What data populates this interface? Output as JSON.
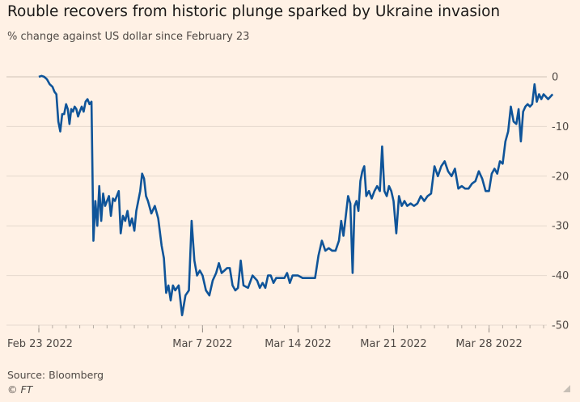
{
  "header": {
    "title": "Rouble recovers from historic plunge sparked by Ukraine invasion",
    "subtitle": "% change against US dollar since February 23"
  },
  "footer": {
    "source": "Source: Bloomberg",
    "credit": "© FT"
  },
  "colors": {
    "background": "#fff1e5",
    "line": "#0f5499",
    "grid": "#e6d9ce",
    "axis_text": "#4f4945"
  },
  "chart_data": {
    "type": "line",
    "title": "Rouble recovers from historic plunge sparked by Ukraine invasion",
    "ylabel": "% change against US dollar since February 23",
    "xlabel": "",
    "y_axis_position": "right",
    "ylim": [
      -50,
      0
    ],
    "yticks": [
      0,
      -10,
      -20,
      -30,
      -40,
      -50
    ],
    "ytick_labels": [
      "0",
      "-10",
      "-20",
      "-30",
      "-40",
      "-50"
    ],
    "xlim": [
      "2022-02-23",
      "2022-04-01"
    ],
    "xticks": [
      {
        "date": "2022-02-23",
        "label": "Feb 23 2022"
      },
      {
        "date": "2022-03-07",
        "label": "Mar 7 2022"
      },
      {
        "date": "2022-03-14",
        "label": "Mar 14 2022"
      },
      {
        "date": "2022-03-21",
        "label": "Mar 21 2022"
      },
      {
        "date": "2022-03-28",
        "label": "Mar 28 2022"
      }
    ],
    "grid": "horizontal",
    "series": [
      {
        "color": "#0f5499",
        "points": [
          [
            "2022-02-23",
            0
          ],
          [
            "2022-02-23",
            0.2
          ],
          [
            "2022-02-23",
            0
          ],
          [
            "2022-02-23",
            -0.5
          ],
          [
            "2022-02-23",
            -1.5
          ],
          [
            "2022-02-24",
            -2
          ],
          [
            "2022-02-24",
            -3
          ],
          [
            "2022-02-24",
            -3.5
          ],
          [
            "2022-02-24",
            -9
          ],
          [
            "2022-02-24",
            -11
          ],
          [
            "2022-02-24",
            -7.5
          ],
          [
            "2022-02-24",
            -7.5
          ],
          [
            "2022-02-25",
            -5.5
          ],
          [
            "2022-02-25",
            -6.5
          ],
          [
            "2022-02-25",
            -9.5
          ],
          [
            "2022-02-25",
            -6.5
          ],
          [
            "2022-02-25",
            -7
          ],
          [
            "2022-02-25",
            -6
          ],
          [
            "2022-02-25",
            -6.5
          ],
          [
            "2022-02-25",
            -8
          ],
          [
            "2022-02-26",
            -7
          ],
          [
            "2022-02-26",
            -6
          ],
          [
            "2022-02-26",
            -7
          ],
          [
            "2022-02-26",
            -5
          ],
          [
            "2022-02-26",
            -4.5
          ],
          [
            "2022-02-26",
            -5.5
          ],
          [
            "2022-02-26",
            -5
          ],
          [
            "2022-02-27",
            -33
          ],
          [
            "2022-02-27",
            -25
          ],
          [
            "2022-02-27",
            -30
          ],
          [
            "2022-02-27",
            -22
          ],
          [
            "2022-02-27",
            -29
          ],
          [
            "2022-02-27",
            -23.5
          ],
          [
            "2022-02-27",
            -26
          ],
          [
            "2022-02-28",
            -25
          ],
          [
            "2022-02-28",
            -24
          ],
          [
            "2022-02-28",
            -28
          ],
          [
            "2022-02-28",
            -24.5
          ],
          [
            "2022-02-28",
            -25
          ],
          [
            "2022-02-28",
            -24
          ],
          [
            "2022-02-28",
            -23
          ],
          [
            "2022-03-01",
            -31.5
          ],
          [
            "2022-03-01",
            -28
          ],
          [
            "2022-03-01",
            -29
          ],
          [
            "2022-03-01",
            -27
          ],
          [
            "2022-03-01",
            -30
          ],
          [
            "2022-03-01",
            -28.5
          ],
          [
            "2022-03-02",
            -31
          ],
          [
            "2022-03-02",
            -27
          ],
          [
            "2022-03-02",
            -25
          ],
          [
            "2022-03-02",
            -23
          ],
          [
            "2022-03-02",
            -19.5
          ],
          [
            "2022-03-02",
            -20.5
          ],
          [
            "2022-03-02",
            -24
          ],
          [
            "2022-03-03",
            -25
          ],
          [
            "2022-03-03",
            -27.5
          ],
          [
            "2022-03-03",
            -26
          ],
          [
            "2022-03-03",
            -28.5
          ],
          [
            "2022-03-04",
            -34
          ],
          [
            "2022-03-04",
            -36.5
          ],
          [
            "2022-03-04",
            -43.5
          ],
          [
            "2022-03-04",
            -42
          ],
          [
            "2022-03-04",
            -45
          ],
          [
            "2022-03-04",
            -42
          ],
          [
            "2022-03-05",
            -43
          ],
          [
            "2022-03-05",
            -42
          ],
          [
            "2022-03-05",
            -48
          ],
          [
            "2022-03-05",
            -44
          ],
          [
            "2022-03-06",
            -43
          ],
          [
            "2022-03-06",
            -29
          ],
          [
            "2022-03-06",
            -37
          ],
          [
            "2022-03-06",
            -40
          ],
          [
            "2022-03-06",
            -39
          ],
          [
            "2022-03-07",
            -40
          ],
          [
            "2022-03-07",
            -43
          ],
          [
            "2022-03-07",
            -44
          ],
          [
            "2022-03-07",
            -41
          ],
          [
            "2022-03-08",
            -39.5
          ],
          [
            "2022-03-08",
            -37.5
          ],
          [
            "2022-03-08",
            -39.5
          ],
          [
            "2022-03-08",
            -39
          ],
          [
            "2022-03-08",
            -38.5
          ],
          [
            "2022-03-09",
            -38.5
          ],
          [
            "2022-03-09",
            -42
          ],
          [
            "2022-03-09",
            -43
          ],
          [
            "2022-03-09",
            -42.5
          ],
          [
            "2022-03-09",
            -37
          ],
          [
            "2022-03-10",
            -42
          ],
          [
            "2022-03-10",
            -42.5
          ],
          [
            "2022-03-10",
            -40
          ],
          [
            "2022-03-11",
            -41
          ],
          [
            "2022-03-11",
            -42.5
          ],
          [
            "2022-03-11",
            -41.5
          ],
          [
            "2022-03-11",
            -42.5
          ],
          [
            "2022-03-11",
            -40
          ],
          [
            "2022-03-12",
            -40
          ],
          [
            "2022-03-12",
            -41.5
          ],
          [
            "2022-03-12",
            -40.5
          ],
          [
            "2022-03-12",
            -40.5
          ],
          [
            "2022-03-12",
            -40.5
          ],
          [
            "2022-03-13",
            -40.5
          ],
          [
            "2022-03-13",
            -39.5
          ],
          [
            "2022-03-13",
            -41.5
          ],
          [
            "2022-03-13",
            -40
          ],
          [
            "2022-03-13",
            -40
          ],
          [
            "2022-03-14",
            -40
          ],
          [
            "2022-03-14",
            -40.5
          ],
          [
            "2022-03-14",
            -40.5
          ],
          [
            "2022-03-15",
            -40.5
          ],
          [
            "2022-03-15",
            -40.5
          ],
          [
            "2022-03-15",
            -36
          ],
          [
            "2022-03-15",
            -33
          ],
          [
            "2022-03-16",
            -35
          ],
          [
            "2022-03-16",
            -34.5
          ],
          [
            "2022-03-16",
            -35
          ],
          [
            "2022-03-16",
            -35
          ],
          [
            "2022-03-17",
            -33
          ],
          [
            "2022-03-17",
            -29
          ],
          [
            "2022-03-17",
            -32
          ],
          [
            "2022-03-17",
            -28
          ],
          [
            "2022-03-17",
            -24
          ],
          [
            "2022-03-17",
            -25.5
          ],
          [
            "2022-03-18",
            -39.5
          ],
          [
            "2022-03-18",
            -26
          ],
          [
            "2022-03-18",
            -25
          ],
          [
            "2022-03-18",
            -27
          ],
          [
            "2022-03-18",
            -21
          ],
          [
            "2022-03-18",
            -19
          ],
          [
            "2022-03-18",
            -18
          ],
          [
            "2022-03-19",
            -24
          ],
          [
            "2022-03-19",
            -23
          ],
          [
            "2022-03-19",
            -24.5
          ],
          [
            "2022-03-19",
            -23
          ],
          [
            "2022-03-19",
            -22
          ],
          [
            "2022-03-20",
            -23
          ],
          [
            "2022-03-20",
            -14
          ],
          [
            "2022-03-20",
            -23
          ],
          [
            "2022-03-20",
            -24
          ],
          [
            "2022-03-20",
            -22
          ],
          [
            "2022-03-20",
            -23
          ],
          [
            "2022-03-21",
            -25
          ],
          [
            "2022-03-21",
            -31.5
          ],
          [
            "2022-03-21",
            -24
          ],
          [
            "2022-03-21",
            -26
          ],
          [
            "2022-03-21",
            -25
          ],
          [
            "2022-03-22",
            -26
          ],
          [
            "2022-03-22",
            -25.5
          ],
          [
            "2022-03-22",
            -26
          ],
          [
            "2022-03-22",
            -25.5
          ],
          [
            "2022-03-23",
            -24
          ],
          [
            "2022-03-23",
            -25
          ],
          [
            "2022-03-23",
            -24
          ],
          [
            "2022-03-23",
            -23.5
          ],
          [
            "2022-03-24",
            -18
          ],
          [
            "2022-03-24",
            -20
          ],
          [
            "2022-03-24",
            -18
          ],
          [
            "2022-03-24",
            -17
          ],
          [
            "2022-03-25",
            -19
          ],
          [
            "2022-03-25",
            -20
          ],
          [
            "2022-03-25",
            -18.5
          ],
          [
            "2022-03-25",
            -22.5
          ],
          [
            "2022-03-26",
            -22
          ],
          [
            "2022-03-26",
            -22.5
          ],
          [
            "2022-03-26",
            -22.5
          ],
          [
            "2022-03-26",
            -21.5
          ],
          [
            "2022-03-27",
            -21
          ],
          [
            "2022-03-27",
            -19
          ],
          [
            "2022-03-27",
            -20.5
          ],
          [
            "2022-03-27",
            -23
          ],
          [
            "2022-03-28",
            -23
          ],
          [
            "2022-03-28",
            -19.5
          ],
          [
            "2022-03-28",
            -18.5
          ],
          [
            "2022-03-28",
            -19.5
          ],
          [
            "2022-03-28",
            -17
          ],
          [
            "2022-03-29",
            -17.5
          ],
          [
            "2022-03-29",
            -13
          ],
          [
            "2022-03-29",
            -11
          ],
          [
            "2022-03-29",
            -6
          ],
          [
            "2022-03-29",
            -9
          ],
          [
            "2022-03-30",
            -9.5
          ],
          [
            "2022-03-30",
            -6.5
          ],
          [
            "2022-03-30",
            -13
          ],
          [
            "2022-03-30",
            -7
          ],
          [
            "2022-03-30",
            -6
          ],
          [
            "2022-03-30",
            -5.5
          ],
          [
            "2022-03-31",
            -6
          ],
          [
            "2022-03-31",
            -5.5
          ],
          [
            "2022-03-31",
            -1.5
          ],
          [
            "2022-03-31",
            -5
          ],
          [
            "2022-03-31",
            -3.5
          ],
          [
            "2022-03-31",
            -4.5
          ],
          [
            "2022-04-01",
            -3.5
          ],
          [
            "2022-04-01",
            -4.5
          ],
          [
            "2022-04-01",
            -3.5
          ]
        ]
      }
    ]
  }
}
